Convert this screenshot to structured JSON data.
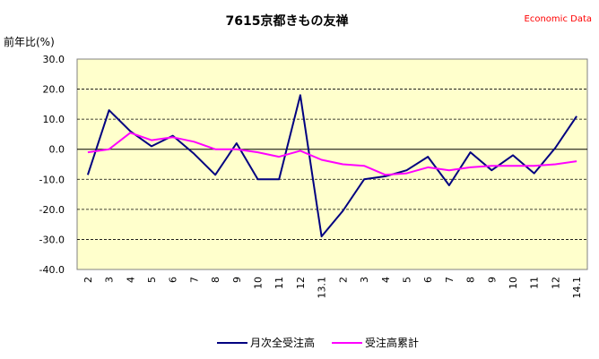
{
  "chart_data": {
    "type": "line",
    "title": "7615京都きもの友禅",
    "source_label": "Economic Data",
    "ylabel": "前年比(%)",
    "ylim": [
      -40,
      30
    ],
    "yticks": [
      "30.0",
      "20.0",
      "10.0",
      "0.0",
      "-10.0",
      "-20.0",
      "-30.0",
      "-40.0"
    ],
    "grid": true,
    "legend_position": "bottom",
    "plot_background": "#ffffcc",
    "categories": [
      "2",
      "3",
      "4",
      "5",
      "6",
      "7",
      "8",
      "9",
      "10",
      "11",
      "12",
      "13.1",
      "2",
      "3",
      "4",
      "5",
      "6",
      "7",
      "8",
      "9",
      "10",
      "11",
      "12",
      "14.1"
    ],
    "series": [
      {
        "name": "月次全受注高",
        "color": "#000080",
        "values": [
          -8.5,
          13.0,
          6.0,
          1.0,
          4.5,
          -1.5,
          -8.5,
          2.0,
          -10.0,
          -10.0,
          18.0,
          -29.0,
          -20.5,
          -10.0,
          -9.0,
          -7.0,
          -2.5,
          -12.0,
          -1.0,
          -7.0,
          -2.0,
          -8.0,
          0.5,
          11.0
        ]
      },
      {
        "name": "受注高累計",
        "color": "#ff00ff",
        "values": [
          -1.0,
          0.0,
          5.5,
          3.0,
          4.0,
          2.5,
          0.0,
          0.0,
          -1.0,
          -2.5,
          -0.5,
          -3.5,
          -5.0,
          -5.5,
          -8.5,
          -8.0,
          -6.0,
          -7.0,
          -6.0,
          -5.5,
          -5.5,
          -5.5,
          -5.0,
          -4.0
        ]
      }
    ]
  }
}
